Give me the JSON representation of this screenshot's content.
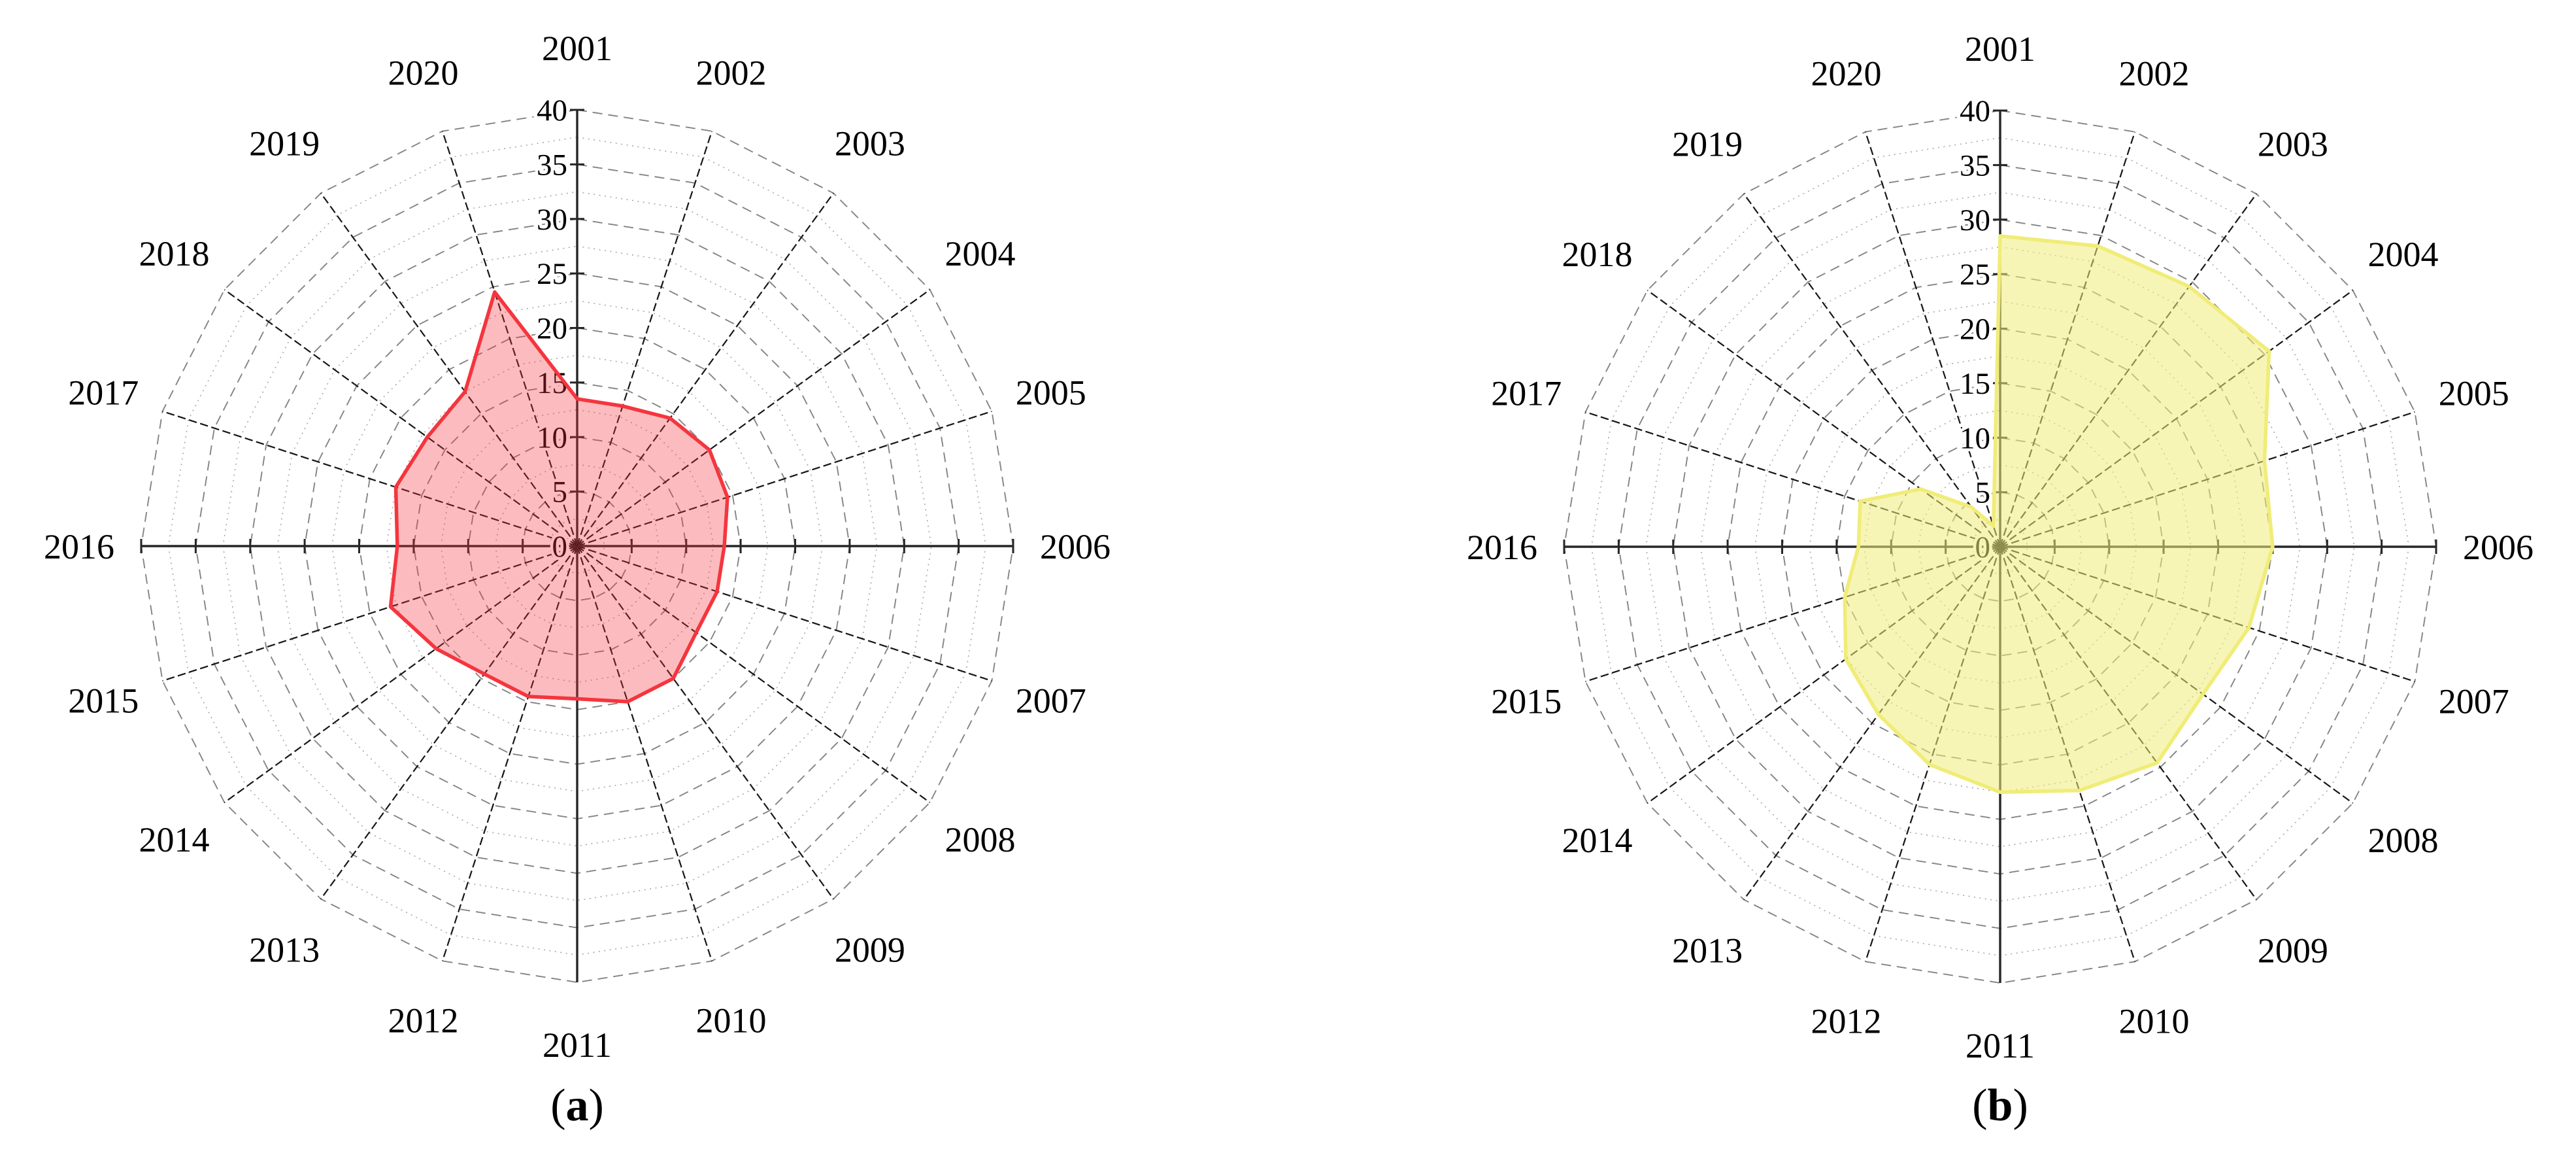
{
  "figure": {
    "description": "Two radar (spider) charts of yearly values 2001-2020, panel (a) red, panel (b) yellow",
    "background": "#ffffff"
  },
  "axis": {
    "min": 0,
    "max": 40,
    "step": 5,
    "minor_step": 2.5,
    "tick_labels": [
      "0",
      "5",
      "10",
      "15",
      "20",
      "25",
      "30",
      "35",
      "40"
    ]
  },
  "colors": {
    "panel_a_stroke": "#f5353e",
    "panel_a_fill": "rgba(245,53,62,0.33)",
    "panel_b_stroke": "#f0ec78",
    "panel_b_fill": "rgba(240,236,120,0.55)",
    "grid_major": "#848484",
    "grid_minor": "#a8a8a8",
    "spokes": "#161616",
    "text": "#000000"
  },
  "chart_data": [
    {
      "type": "radar",
      "panel": "a",
      "caption": {
        "open": "(",
        "letter": "a",
        "close": ")"
      },
      "categories": [
        "2001",
        "2002",
        "2003",
        "2004",
        "2005",
        "2006",
        "2007",
        "2008",
        "2009",
        "2010",
        "2011",
        "2012",
        "2013",
        "2014",
        "2015",
        "2016",
        "2017",
        "2018",
        "2019",
        "2020"
      ],
      "values": [
        13.5,
        13.5,
        14.5,
        15,
        14.5,
        13.5,
        13.5,
        13.5,
        15,
        15,
        14,
        14.5,
        14.5,
        16,
        18,
        16.5,
        17.5,
        17,
        17.5,
        24.5
      ],
      "rmin": 0,
      "rmax": 40,
      "rstep": 5,
      "grid": "on",
      "legend_position": "none",
      "stroke": "#f5353e",
      "fill": "rgba(245,53,62,0.33)"
    },
    {
      "type": "radar",
      "panel": "b",
      "caption": {
        "open": "(",
        "letter": "b",
        "close": ")"
      },
      "categories": [
        "2001",
        "2002",
        "2003",
        "2004",
        "2005",
        "2006",
        "2007",
        "2008",
        "2009",
        "2010",
        "2011",
        "2012",
        "2013",
        "2014",
        "2015",
        "2016",
        "2017",
        "2018",
        "2019",
        "2020"
      ],
      "values": [
        28.5,
        29,
        29.5,
        30.5,
        25.5,
        25,
        24,
        23,
        24.5,
        23.5,
        22.5,
        21,
        19,
        17.5,
        15,
        13,
        13.5,
        9,
        4.5,
        2
      ],
      "rmin": 0,
      "rmax": 40,
      "rstep": 5,
      "grid": "on",
      "legend_position": "none",
      "stroke": "#f0ec78",
      "fill": "rgba(240,236,120,0.55)"
    }
  ]
}
